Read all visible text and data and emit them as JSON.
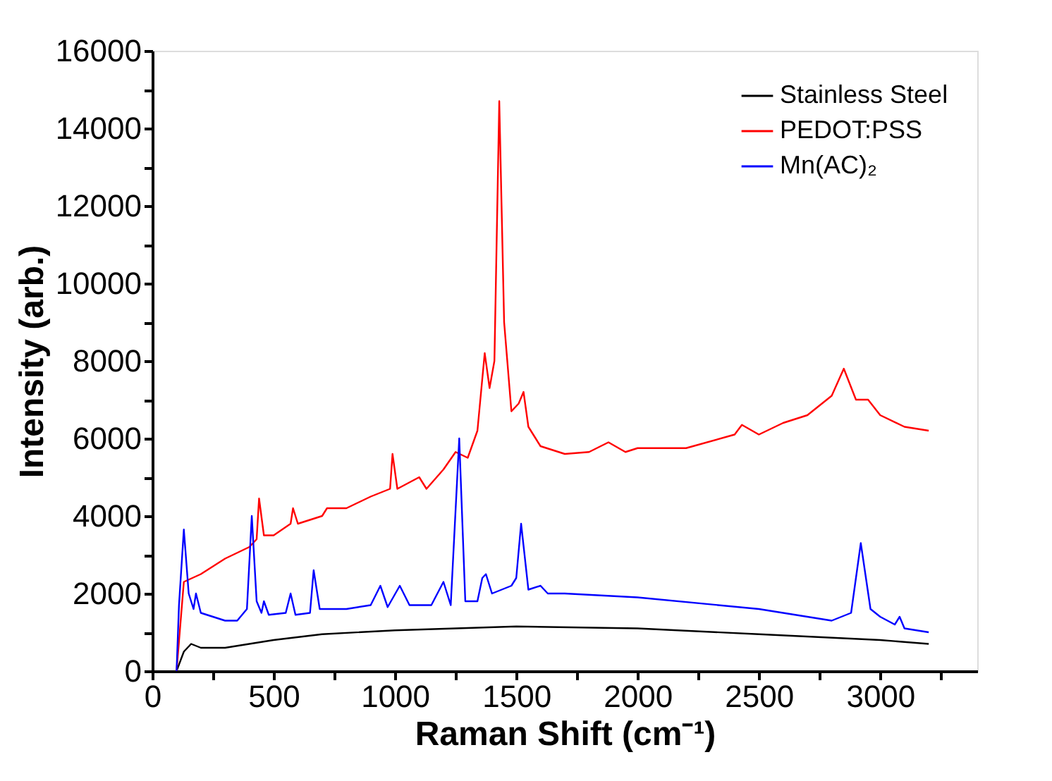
{
  "chart_data": {
    "type": "line",
    "xlabel": "Raman Shift (cm⁻¹)",
    "ylabel": "Intensity (arb.)",
    "xlim": [
      0,
      3400
    ],
    "ylim": [
      0,
      16000
    ],
    "xticks": [
      0,
      {
        "value": 250,
        "label": null
      },
      500,
      {
        "value": 750,
        "label": null
      },
      1000,
      {
        "value": 1250,
        "label": null
      },
      1500,
      {
        "value": 1750,
        "label": null
      },
      2000,
      {
        "value": 2250,
        "label": null
      },
      2500,
      {
        "value": 2750,
        "label": null
      },
      3000,
      {
        "value": 3250,
        "label": null
      }
    ],
    "yticks": [
      0,
      {
        "value": 1000,
        "label": null
      },
      2000,
      {
        "value": 3000,
        "label": null
      },
      4000,
      {
        "value": 5000,
        "label": null
      },
      6000,
      {
        "value": 7000,
        "label": null
      },
      8000,
      {
        "value": 9000,
        "label": null
      },
      10000,
      {
        "value": 11000,
        "label": null
      },
      12000,
      {
        "value": 13000,
        "label": null
      },
      14000,
      {
        "value": 15000,
        "label": null
      },
      16000
    ],
    "grid": false,
    "legend": "top right",
    "marker": "none",
    "line_style": "solid",
    "series": [
      {
        "name": "Stainless Steel",
        "color": "#000000",
        "x": [
          100,
          130,
          160,
          200,
          300,
          500,
          700,
          1000,
          1500,
          2000,
          2500,
          3000,
          3200
        ],
        "values": [
          0,
          500,
          700,
          600,
          600,
          800,
          950,
          1050,
          1150,
          1100,
          950,
          800,
          700
        ]
      },
      {
        "name": "PEDOT:PSS",
        "color": "#ff0000",
        "x": [
          100,
          130,
          200,
          300,
          400,
          430,
          440,
          460,
          500,
          570,
          580,
          600,
          700,
          720,
          800,
          900,
          980,
          990,
          1010,
          1100,
          1130,
          1200,
          1250,
          1300,
          1340,
          1370,
          1390,
          1410,
          1430,
          1450,
          1480,
          1510,
          1530,
          1550,
          1600,
          1700,
          1800,
          1880,
          1950,
          2000,
          2200,
          2400,
          2430,
          2500,
          2600,
          2700,
          2800,
          2850,
          2900,
          2950,
          3000,
          3100,
          3200
        ],
        "values": [
          0,
          2300,
          2500,
          2900,
          3200,
          3400,
          4450,
          3500,
          3500,
          3800,
          4200,
          3800,
          4000,
          4200,
          4200,
          4500,
          4700,
          5600,
          4700,
          5000,
          4700,
          5200,
          5650,
          5500,
          6200,
          8200,
          7300,
          8000,
          14700,
          9000,
          6700,
          6900,
          7200,
          6300,
          5800,
          5600,
          5650,
          5900,
          5650,
          5750,
          5750,
          6100,
          6350,
          6100,
          6400,
          6600,
          7100,
          7800,
          7000,
          7000,
          6600,
          6300,
          6200
        ]
      },
      {
        "name": "Mn(AC)₂",
        "color": "#0000ff",
        "x": [
          100,
          110,
          130,
          150,
          170,
          180,
          200,
          300,
          350,
          390,
          410,
          430,
          450,
          460,
          480,
          550,
          570,
          590,
          650,
          665,
          690,
          800,
          900,
          940,
          970,
          1020,
          1060,
          1150,
          1200,
          1230,
          1265,
          1290,
          1340,
          1360,
          1375,
          1400,
          1480,
          1500,
          1520,
          1550,
          1600,
          1630,
          1700,
          2000,
          2500,
          2800,
          2880,
          2920,
          2960,
          3000,
          3060,
          3080,
          3100,
          3200
        ],
        "values": [
          0,
          1700,
          3650,
          2000,
          1600,
          2000,
          1500,
          1300,
          1300,
          1600,
          4000,
          1800,
          1500,
          1800,
          1450,
          1500,
          2000,
          1450,
          1500,
          2600,
          1600,
          1600,
          1700,
          2200,
          1650,
          2200,
          1700,
          1700,
          2300,
          1700,
          6000,
          1800,
          1800,
          2400,
          2500,
          2000,
          2200,
          2400,
          3800,
          2100,
          2200,
          2000,
          2000,
          1900,
          1600,
          1300,
          1500,
          3300,
          1600,
          1400,
          1200,
          1400,
          1100,
          1000
        ]
      }
    ]
  }
}
